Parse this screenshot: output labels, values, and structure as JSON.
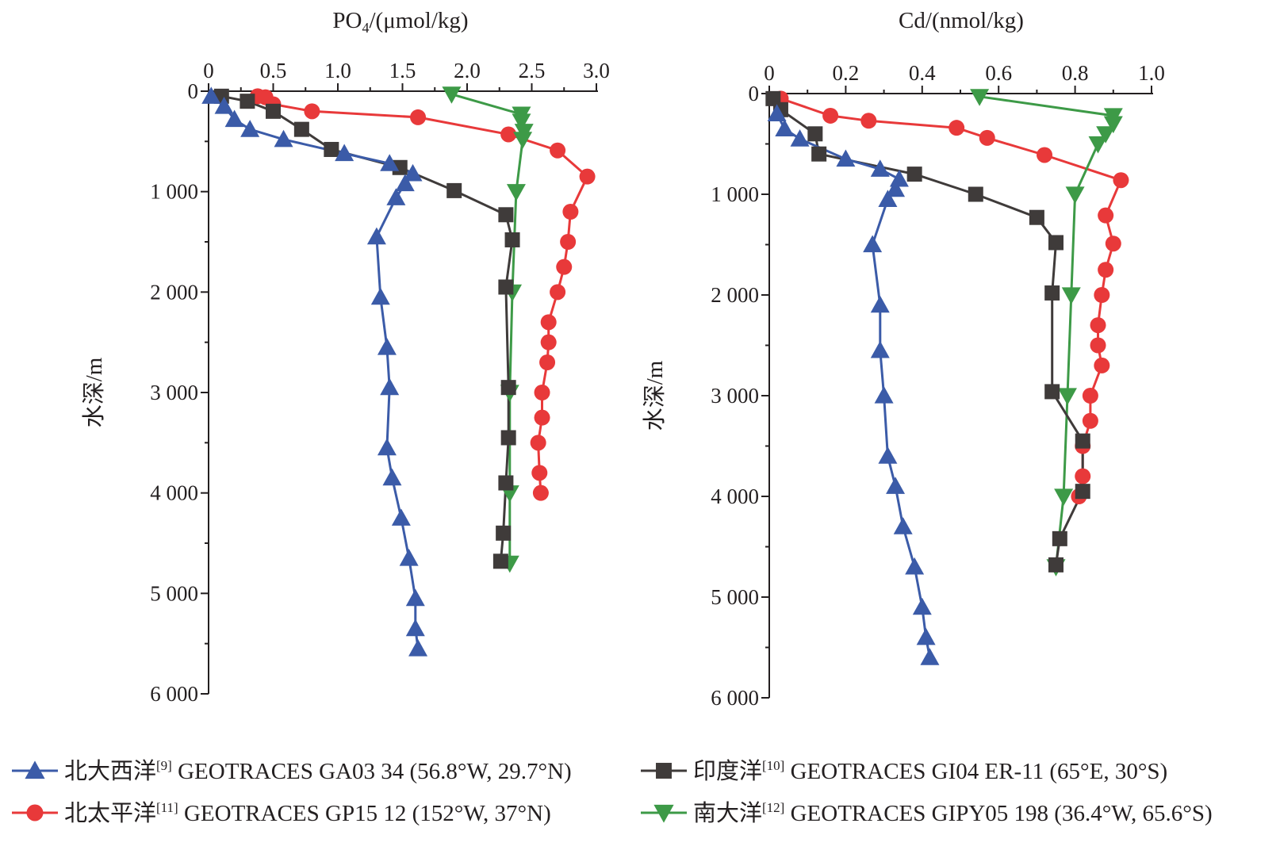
{
  "chart_data": [
    {
      "type": "line",
      "xlabel": "PO4/(μmol/kg)",
      "xlabel_main": "PO",
      "xlabel_sub": "4",
      "xlabel_rest": "/(μmol/kg)",
      "ylabel": "水深/m",
      "xlim": [
        0,
        3.0
      ],
      "ylim": [
        0,
        6000
      ],
      "x_axis_position": "top",
      "y_inverted": true,
      "grid": false,
      "x_ticks": [
        0,
        0.5,
        1.0,
        1.5,
        2.0,
        2.5,
        3.0
      ],
      "x_tick_labels": [
        "0",
        "0.5",
        "1.0",
        "1.5",
        "2.0",
        "2.5",
        "3.0"
      ],
      "y_ticks": [
        0,
        1000,
        2000,
        3000,
        4000,
        5000,
        6000
      ],
      "y_tick_labels": [
        "0",
        "1 000",
        "2 000",
        "3 000",
        "4 000",
        "5 000",
        "6 000"
      ],
      "series": [
        {
          "name": "北大西洋 GEOTRACES GA03 34 (56.8°W, 29.7°N)",
          "marker": "triangle-up",
          "color": "#3b5ba8",
          "points": [
            [
              0.02,
              50
            ],
            [
              0.12,
              150
            ],
            [
              0.2,
              280
            ],
            [
              0.32,
              380
            ],
            [
              0.58,
              480
            ],
            [
              1.05,
              620
            ],
            [
              1.4,
              720
            ],
            [
              1.58,
              820
            ],
            [
              1.52,
              920
            ],
            [
              1.45,
              1060
            ],
            [
              1.3,
              1450
            ],
            [
              1.33,
              2050
            ],
            [
              1.38,
              2550
            ],
            [
              1.4,
              2950
            ],
            [
              1.38,
              3550
            ],
            [
              1.42,
              3850
            ],
            [
              1.49,
              4250
            ],
            [
              1.55,
              4650
            ],
            [
              1.6,
              5050
            ],
            [
              1.6,
              5350
            ],
            [
              1.62,
              5550
            ]
          ]
        },
        {
          "name": "北太平洋 GEOTRACES GP15 12 (152°W, 37°N)",
          "marker": "circle",
          "color": "#e8393a",
          "points": [
            [
              0.38,
              50
            ],
            [
              0.44,
              60
            ],
            [
              0.5,
              130
            ],
            [
              0.8,
              200
            ],
            [
              1.62,
              260
            ],
            [
              2.32,
              430
            ],
            [
              2.7,
              590
            ],
            [
              2.93,
              850
            ],
            [
              2.8,
              1200
            ],
            [
              2.78,
              1500
            ],
            [
              2.75,
              1750
            ],
            [
              2.7,
              2000
            ],
            [
              2.63,
              2300
            ],
            [
              2.63,
              2500
            ],
            [
              2.62,
              2700
            ],
            [
              2.58,
              3000
            ],
            [
              2.58,
              3250
            ],
            [
              2.55,
              3500
            ],
            [
              2.56,
              3800
            ],
            [
              2.57,
              4000
            ]
          ]
        },
        {
          "name": "印度洋 GEOTRACES GI04 ER-11 (65°E, 30°S)",
          "marker": "square",
          "color": "#3f3b3a",
          "points": [
            [
              0.1,
              50
            ],
            [
              0.3,
              100
            ],
            [
              0.5,
              200
            ],
            [
              0.72,
              380
            ],
            [
              0.95,
              580
            ],
            [
              1.48,
              760
            ],
            [
              1.9,
              990
            ],
            [
              2.3,
              1230
            ],
            [
              2.35,
              1480
            ],
            [
              2.3,
              1950
            ],
            [
              2.32,
              2950
            ],
            [
              2.32,
              3450
            ],
            [
              2.3,
              3900
            ],
            [
              2.28,
              4400
            ],
            [
              2.26,
              4680
            ]
          ]
        },
        {
          "name": "南大洋 GEOTRACES GIPY05 198 (36.4°W, 65.6°S)",
          "marker": "triangle-down",
          "color": "#3d9a47",
          "points": [
            [
              1.88,
              30
            ],
            [
              2.42,
              230
            ],
            [
              2.42,
              300
            ],
            [
              2.44,
              400
            ],
            [
              2.43,
              480
            ],
            [
              2.38,
              1000
            ],
            [
              2.35,
              2000
            ],
            [
              2.33,
              3000
            ],
            [
              2.33,
              4000
            ],
            [
              2.33,
              4700
            ]
          ]
        }
      ]
    },
    {
      "type": "line",
      "xlabel": "Cd/(nmol/kg)",
      "ylabel": "水深/m",
      "xlim": [
        0,
        1.0
      ],
      "ylim": [
        0,
        6000
      ],
      "x_axis_position": "top",
      "y_inverted": true,
      "grid": false,
      "x_ticks": [
        0,
        0.2,
        0.4,
        0.6,
        0.8,
        1.0
      ],
      "x_tick_labels": [
        "0",
        "0.2",
        "0.4",
        "0.6",
        "0.8",
        "1.0"
      ],
      "y_ticks": [
        0,
        1000,
        2000,
        3000,
        4000,
        5000,
        6000
      ],
      "y_tick_labels": [
        "0",
        "1 000",
        "2 000",
        "3 000",
        "4 000",
        "5 000",
        "6 000"
      ],
      "series": [
        {
          "name": "北大西洋 GEOTRACES GA03 34 (56.8°W, 29.7°N)",
          "marker": "triangle-up",
          "color": "#3b5ba8",
          "points": [
            [
              0.02,
              200
            ],
            [
              0.04,
              350
            ],
            [
              0.08,
              450
            ],
            [
              0.2,
              650
            ],
            [
              0.29,
              750
            ],
            [
              0.34,
              850
            ],
            [
              0.33,
              950
            ],
            [
              0.31,
              1050
            ],
            [
              0.27,
              1500
            ],
            [
              0.29,
              2100
            ],
            [
              0.29,
              2550
            ],
            [
              0.3,
              3000
            ],
            [
              0.31,
              3600
            ],
            [
              0.33,
              3900
            ],
            [
              0.35,
              4300
            ],
            [
              0.38,
              4700
            ],
            [
              0.4,
              5100
            ],
            [
              0.41,
              5400
            ],
            [
              0.42,
              5600
            ]
          ]
        },
        {
          "name": "北太平洋 GEOTRACES GP15 12 (152°W, 37°N)",
          "marker": "circle",
          "color": "#e8393a",
          "points": [
            [
              0.03,
              50
            ],
            [
              0.16,
              220
            ],
            [
              0.26,
              270
            ],
            [
              0.49,
              340
            ],
            [
              0.57,
              440
            ],
            [
              0.72,
              610
            ],
            [
              0.92,
              860
            ],
            [
              0.88,
              1210
            ],
            [
              0.9,
              1490
            ],
            [
              0.88,
              1750
            ],
            [
              0.87,
              2000
            ],
            [
              0.86,
              2300
            ],
            [
              0.86,
              2500
            ],
            [
              0.87,
              2700
            ],
            [
              0.84,
              3000
            ],
            [
              0.84,
              3250
            ],
            [
              0.82,
              3500
            ],
            [
              0.82,
              3800
            ],
            [
              0.81,
              4000
            ]
          ]
        },
        {
          "name": "印度洋 GEOTRACES GI04 ER-11 (65°E, 30°S)",
          "marker": "square",
          "color": "#3f3b3a",
          "points": [
            [
              0.01,
              50
            ],
            [
              0.03,
              160
            ],
            [
              0.12,
              400
            ],
            [
              0.13,
              600
            ],
            [
              0.38,
              800
            ],
            [
              0.54,
              1000
            ],
            [
              0.7,
              1230
            ],
            [
              0.75,
              1480
            ],
            [
              0.74,
              1980
            ],
            [
              0.74,
              2960
            ],
            [
              0.82,
              3450
            ],
            [
              0.82,
              3950
            ],
            [
              0.76,
              4420
            ],
            [
              0.75,
              4680
            ]
          ]
        },
        {
          "name": "南大洋 GEOTRACES GIPY05 198 (36.4°W, 65.6°S)",
          "marker": "triangle-down",
          "color": "#3d9a47",
          "points": [
            [
              0.55,
              30
            ],
            [
              0.9,
              220
            ],
            [
              0.9,
              300
            ],
            [
              0.88,
              400
            ],
            [
              0.86,
              500
            ],
            [
              0.8,
              1000
            ],
            [
              0.79,
              2000
            ],
            [
              0.78,
              3000
            ],
            [
              0.77,
              4000
            ],
            [
              0.75,
              4700
            ]
          ]
        }
      ]
    }
  ],
  "legend": [
    {
      "marker": "triangle-up",
      "color": "#3b5ba8",
      "name": "北大西洋",
      "ref": "[9]",
      "rest": " GEOTRACES GA03 34 (56.8°W, 29.7°N)"
    },
    {
      "marker": "square",
      "color": "#3f3b3a",
      "name": "印度洋",
      "ref": "[10]",
      "rest": " GEOTRACES GI04 ER-11 (65°E, 30°S)"
    },
    {
      "marker": "circle",
      "color": "#e8393a",
      "name": "北太平洋",
      "ref": "[11]",
      "rest": " GEOTRACES GP15 12 (152°W, 37°N)"
    },
    {
      "marker": "triangle-down",
      "color": "#3d9a47",
      "name": "南大洋",
      "ref": "[12]",
      "rest": " GEOTRACES GIPY05 198 (36.4°W, 65.6°S)"
    }
  ]
}
